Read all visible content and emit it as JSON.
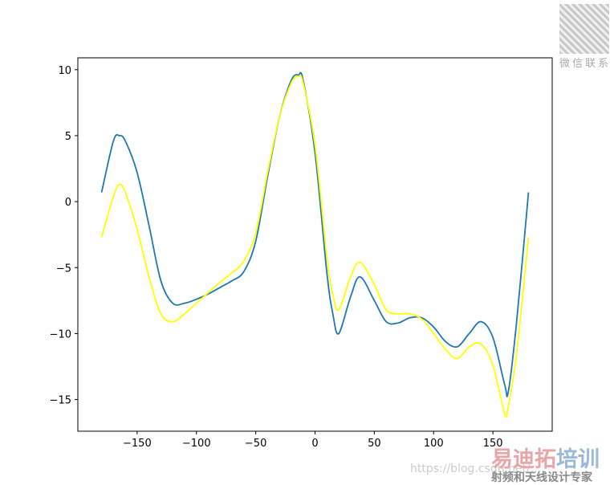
{
  "chart_data": {
    "type": "line",
    "title": "",
    "xlabel": "",
    "ylabel": "",
    "xlim": [
      -200,
      200
    ],
    "ylim": [
      -17.4,
      10.9
    ],
    "grid": false,
    "xticks": [
      -150,
      -100,
      -50,
      0,
      50,
      100,
      150
    ],
    "yticks": [
      -15,
      -10,
      -5,
      0,
      5,
      10
    ],
    "x": [
      -180,
      -170,
      -165,
      -160,
      -150,
      -140,
      -130,
      -120,
      -110,
      -100,
      -90,
      -80,
      -70,
      -60,
      -50,
      -40,
      -30,
      -20,
      -14,
      -10,
      0,
      10,
      15,
      20,
      30,
      38,
      50,
      60,
      70,
      80,
      90,
      100,
      110,
      120,
      130,
      140,
      150,
      160,
      163,
      170,
      180
    ],
    "series": [
      {
        "color": "#1f77b4",
        "values": [
          0.7,
          4.6,
          5.0,
          4.6,
          2.2,
          -1.8,
          -6.0,
          -7.7,
          -7.7,
          -7.4,
          -7.0,
          -6.5,
          -6.0,
          -5.3,
          -3.0,
          1.9,
          6.4,
          9.2,
          9.6,
          9.2,
          3.7,
          -5.4,
          -8.5,
          -10.0,
          -7.2,
          -5.7,
          -7.5,
          -9.1,
          -9.2,
          -8.8,
          -8.8,
          -9.5,
          -10.6,
          -11.0,
          -10.0,
          -9.1,
          -10.3,
          -13.9,
          -14.4,
          -9.1,
          0.7
        ]
      },
      {
        "color": "#ffff00",
        "values": [
          -2.7,
          0.4,
          1.3,
          0.7,
          -2.1,
          -5.7,
          -8.5,
          -9.1,
          -8.5,
          -7.7,
          -6.9,
          -6.1,
          -5.4,
          -4.5,
          -2.4,
          2.2,
          6.4,
          9.0,
          9.5,
          9.0,
          4.3,
          -4.2,
          -7.0,
          -8.2,
          -5.7,
          -4.6,
          -6.3,
          -8.2,
          -8.5,
          -8.5,
          -8.9,
          -10.0,
          -11.2,
          -11.9,
          -11.0,
          -10.8,
          -12.4,
          -16.1,
          -15.5,
          -11.5,
          -2.7
        ]
      }
    ]
  },
  "watermark": {
    "qr_caption": "微信联系",
    "url": "https://blog.csdn.net/...",
    "brand_red": "易迪拓",
    "brand_blue": "培训",
    "tagline": "射频和天线设计专家"
  }
}
